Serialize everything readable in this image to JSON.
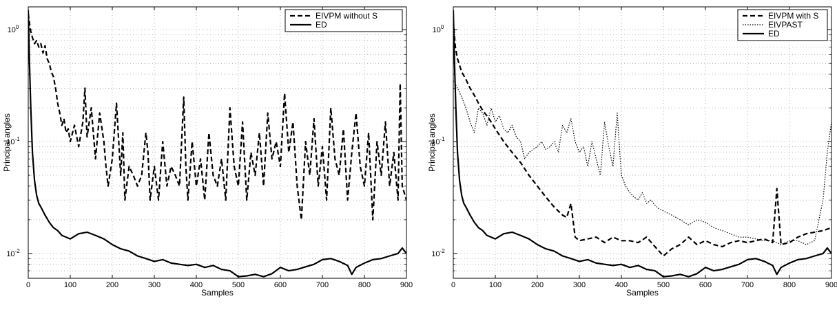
{
  "chart_data": [
    {
      "type": "line",
      "title": "",
      "xlabel": "Samples",
      "ylabel": "Principal angles",
      "xlim": [
        0,
        900
      ],
      "ylim": [
        0.006,
        1.6
      ],
      "yscale": "log",
      "grid": true,
      "legend_position": "top-right",
      "x_ticks": [
        "0",
        "100",
        "200",
        "300",
        "400",
        "500",
        "600",
        "700",
        "800",
        "900"
      ],
      "y_ticks": [
        {
          "label": "10",
          "exp": "-2",
          "value": 0.01
        },
        {
          "label": "10",
          "exp": "-1",
          "value": 0.1
        },
        {
          "label": "10",
          "exp": "0",
          "value": 1
        }
      ],
      "series": [
        {
          "name": "EIVPM without S",
          "style": "dashed",
          "x": [
            0,
            5,
            10,
            15,
            20,
            25,
            30,
            35,
            40,
            45,
            50,
            55,
            60,
            65,
            70,
            75,
            80,
            85,
            90,
            95,
            100,
            110,
            120,
            130,
            135,
            140,
            150,
            160,
            170,
            180,
            185,
            190,
            200,
            210,
            220,
            225,
            230,
            240,
            250,
            260,
            270,
            280,
            285,
            290,
            300,
            310,
            320,
            330,
            340,
            350,
            360,
            370,
            375,
            380,
            390,
            400,
            410,
            420,
            430,
            440,
            450,
            460,
            470,
            480,
            490,
            500,
            510,
            520,
            530,
            540,
            550,
            560,
            570,
            580,
            590,
            600,
            610,
            620,
            630,
            640,
            650,
            660,
            670,
            680,
            690,
            700,
            710,
            720,
            730,
            740,
            750,
            760,
            770,
            780,
            790,
            800,
            810,
            820,
            830,
            840,
            850,
            860,
            870,
            880,
            885,
            890,
            900
          ],
          "y": [
            1.4,
            1.0,
            0.85,
            0.75,
            0.8,
            0.7,
            0.75,
            0.62,
            0.72,
            0.55,
            0.5,
            0.42,
            0.38,
            0.3,
            0.22,
            0.18,
            0.14,
            0.16,
            0.12,
            0.13,
            0.1,
            0.14,
            0.09,
            0.15,
            0.3,
            0.11,
            0.2,
            0.07,
            0.18,
            0.1,
            0.06,
            0.04,
            0.07,
            0.22,
            0.05,
            0.12,
            0.03,
            0.06,
            0.05,
            0.04,
            0.05,
            0.12,
            0.08,
            0.03,
            0.06,
            0.03,
            0.1,
            0.04,
            0.06,
            0.05,
            0.04,
            0.25,
            0.06,
            0.03,
            0.1,
            0.04,
            0.07,
            0.03,
            0.12,
            0.05,
            0.04,
            0.07,
            0.03,
            0.2,
            0.06,
            0.04,
            0.15,
            0.03,
            0.08,
            0.05,
            0.12,
            0.04,
            0.18,
            0.07,
            0.1,
            0.06,
            0.27,
            0.08,
            0.15,
            0.04,
            0.02,
            0.1,
            0.05,
            0.16,
            0.04,
            0.09,
            0.03,
            0.2,
            0.07,
            0.05,
            0.13,
            0.03,
            0.08,
            0.18,
            0.06,
            0.04,
            0.12,
            0.02,
            0.1,
            0.05,
            0.15,
            0.04,
            0.08,
            0.03,
            0.33,
            0.04,
            0.03
          ]
        },
        {
          "name": "ED",
          "style": "solid",
          "x": [
            0,
            3,
            6,
            10,
            15,
            20,
            25,
            30,
            40,
            50,
            60,
            70,
            80,
            90,
            100,
            120,
            140,
            160,
            180,
            200,
            220,
            240,
            260,
            280,
            300,
            320,
            340,
            360,
            380,
            400,
            420,
            440,
            460,
            480,
            500,
            520,
            540,
            560,
            580,
            600,
            620,
            640,
            660,
            680,
            700,
            720,
            740,
            760,
            770,
            780,
            800,
            820,
            840,
            860,
            880,
            890,
            900
          ],
          "y": [
            1.5,
            0.5,
            0.2,
            0.08,
            0.045,
            0.033,
            0.028,
            0.026,
            0.022,
            0.019,
            0.017,
            0.016,
            0.0145,
            0.014,
            0.0135,
            0.015,
            0.0155,
            0.0145,
            0.0135,
            0.012,
            0.011,
            0.0105,
            0.0095,
            0.009,
            0.0085,
            0.0088,
            0.0082,
            0.008,
            0.0078,
            0.008,
            0.0075,
            0.0078,
            0.0072,
            0.007,
            0.0062,
            0.0063,
            0.0065,
            0.0062,
            0.0066,
            0.0075,
            0.007,
            0.0072,
            0.0076,
            0.008,
            0.0088,
            0.009,
            0.0085,
            0.0078,
            0.0065,
            0.0075,
            0.0082,
            0.0088,
            0.009,
            0.0095,
            0.01,
            0.0112,
            0.01
          ]
        }
      ]
    },
    {
      "type": "line",
      "title": "",
      "xlabel": "Samples",
      "ylabel": "Principal angles",
      "xlim": [
        0,
        900
      ],
      "ylim": [
        0.006,
        1.6
      ],
      "yscale": "log",
      "grid": true,
      "legend_position": "top-right",
      "x_ticks": [
        "0",
        "100",
        "200",
        "300",
        "400",
        "500",
        "600",
        "700",
        "800",
        "900"
      ],
      "y_ticks": [
        {
          "label": "10",
          "exp": "-2",
          "value": 0.01
        },
        {
          "label": "10",
          "exp": "-1",
          "value": 0.1
        },
        {
          "label": "10",
          "exp": "0",
          "value": 1
        }
      ],
      "series": [
        {
          "name": "EIVPM with S",
          "style": "dashed",
          "x": [
            0,
            5,
            10,
            15,
            20,
            30,
            40,
            50,
            60,
            70,
            80,
            90,
            100,
            120,
            140,
            160,
            180,
            200,
            220,
            240,
            260,
            270,
            280,
            290,
            300,
            320,
            340,
            360,
            380,
            400,
            420,
            440,
            460,
            480,
            500,
            520,
            540,
            560,
            580,
            600,
            620,
            640,
            660,
            680,
            700,
            720,
            740,
            760,
            770,
            780,
            800,
            820,
            840,
            860,
            880,
            900
          ],
          "y": [
            1.2,
            0.7,
            0.55,
            0.48,
            0.42,
            0.36,
            0.3,
            0.26,
            0.22,
            0.19,
            0.17,
            0.15,
            0.13,
            0.1,
            0.08,
            0.065,
            0.05,
            0.04,
            0.032,
            0.026,
            0.022,
            0.021,
            0.028,
            0.014,
            0.013,
            0.0135,
            0.014,
            0.0125,
            0.014,
            0.013,
            0.013,
            0.0125,
            0.014,
            0.0115,
            0.0095,
            0.011,
            0.012,
            0.014,
            0.012,
            0.013,
            0.012,
            0.0115,
            0.0125,
            0.013,
            0.0125,
            0.013,
            0.0135,
            0.0125,
            0.038,
            0.012,
            0.0125,
            0.014,
            0.015,
            0.0155,
            0.016,
            0.017
          ]
        },
        {
          "name": "EIVPAST",
          "style": "dotted",
          "x": [
            0,
            10,
            20,
            30,
            40,
            50,
            60,
            70,
            80,
            90,
            100,
            110,
            120,
            130,
            140,
            150,
            160,
            170,
            180,
            190,
            200,
            210,
            220,
            230,
            240,
            250,
            260,
            270,
            280,
            290,
            300,
            310,
            320,
            330,
            340,
            350,
            360,
            370,
            380,
            390,
            400,
            410,
            420,
            430,
            440,
            450,
            460,
            470,
            480,
            490,
            500,
            520,
            540,
            560,
            580,
            600,
            620,
            640,
            660,
            680,
            700,
            720,
            740,
            760,
            780,
            800,
            820,
            840,
            860,
            870,
            880,
            890,
            900
          ],
          "y": [
            0.35,
            0.3,
            0.25,
            0.2,
            0.15,
            0.12,
            0.2,
            0.18,
            0.14,
            0.2,
            0.15,
            0.17,
            0.13,
            0.12,
            0.14,
            0.11,
            0.1,
            0.07,
            0.08,
            0.085,
            0.09,
            0.1,
            0.085,
            0.09,
            0.1,
            0.08,
            0.14,
            0.12,
            0.16,
            0.1,
            0.08,
            0.09,
            0.06,
            0.1,
            0.07,
            0.05,
            0.15,
            0.09,
            0.06,
            0.18,
            0.05,
            0.04,
            0.035,
            0.032,
            0.03,
            0.035,
            0.028,
            0.03,
            0.027,
            0.025,
            0.024,
            0.022,
            0.02,
            0.018,
            0.02,
            0.019,
            0.017,
            0.016,
            0.015,
            0.014,
            0.014,
            0.0135,
            0.013,
            0.013,
            0.012,
            0.013,
            0.013,
            0.012,
            0.013,
            0.02,
            0.03,
            0.08,
            0.15
          ]
        },
        {
          "name": "ED",
          "style": "solid",
          "x": [
            0,
            3,
            6,
            10,
            15,
            20,
            25,
            30,
            40,
            50,
            60,
            70,
            80,
            90,
            100,
            120,
            140,
            160,
            180,
            200,
            220,
            240,
            260,
            280,
            300,
            320,
            340,
            360,
            380,
            400,
            420,
            440,
            460,
            480,
            500,
            520,
            540,
            560,
            580,
            600,
            620,
            640,
            660,
            680,
            700,
            720,
            740,
            760,
            770,
            780,
            800,
            820,
            840,
            860,
            880,
            890,
            900
          ],
          "y": [
            1.5,
            0.5,
            0.2,
            0.08,
            0.045,
            0.033,
            0.028,
            0.026,
            0.022,
            0.019,
            0.017,
            0.016,
            0.0145,
            0.014,
            0.0135,
            0.015,
            0.0155,
            0.0145,
            0.0135,
            0.012,
            0.011,
            0.0105,
            0.0095,
            0.009,
            0.0085,
            0.0088,
            0.0082,
            0.008,
            0.0078,
            0.008,
            0.0075,
            0.0078,
            0.0072,
            0.007,
            0.0062,
            0.0063,
            0.0065,
            0.0062,
            0.0066,
            0.0075,
            0.007,
            0.0072,
            0.0076,
            0.008,
            0.0088,
            0.009,
            0.0085,
            0.0078,
            0.0065,
            0.0075,
            0.0082,
            0.0088,
            0.009,
            0.0095,
            0.01,
            0.0112,
            0.01
          ]
        }
      ]
    }
  ]
}
